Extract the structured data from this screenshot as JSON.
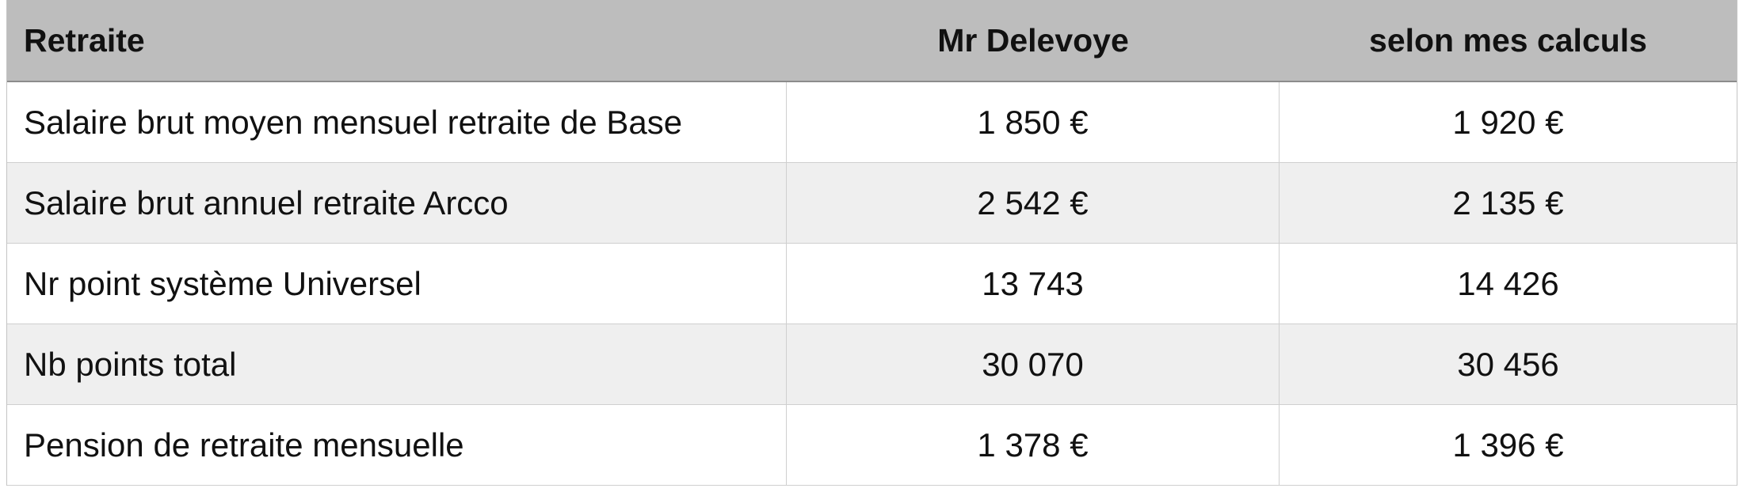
{
  "table": {
    "header": [
      "Retraite",
      "Mr Delevoye",
      "selon mes calculs"
    ],
    "rows": [
      [
        "Salaire brut moyen mensuel retraite de Base",
        "1 850 €",
        "1 920 €"
      ],
      [
        "Salaire brut annuel retraite Arcco",
        "2 542 €",
        "2 135 €"
      ],
      [
        "Nr point système Universel",
        "13 743",
        "14 426"
      ],
      [
        "Nb points total",
        "30 070",
        "30 456"
      ],
      [
        "Pension de retraite mensuelle",
        "1 378 €",
        "1 396 €"
      ]
    ]
  }
}
